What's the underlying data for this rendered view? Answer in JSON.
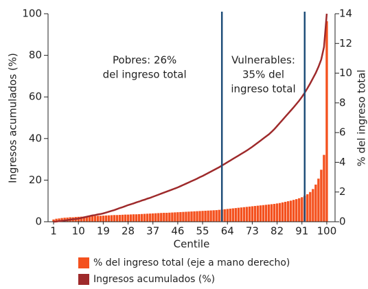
{
  "chart_data": {
    "type": "bar_line",
    "x": [
      1,
      2,
      3,
      4,
      5,
      6,
      7,
      8,
      9,
      10,
      11,
      12,
      13,
      14,
      15,
      16,
      17,
      18,
      19,
      20,
      21,
      22,
      23,
      24,
      25,
      26,
      27,
      28,
      29,
      30,
      31,
      32,
      33,
      34,
      35,
      36,
      37,
      38,
      39,
      40,
      41,
      42,
      43,
      44,
      45,
      46,
      47,
      48,
      49,
      50,
      51,
      52,
      53,
      54,
      55,
      56,
      57,
      58,
      59,
      60,
      61,
      62,
      63,
      64,
      65,
      66,
      67,
      68,
      69,
      70,
      71,
      72,
      73,
      74,
      75,
      76,
      77,
      78,
      79,
      80,
      81,
      82,
      83,
      84,
      85,
      86,
      87,
      88,
      89,
      90,
      91,
      92,
      93,
      94,
      95,
      96,
      97,
      98,
      99,
      100
    ],
    "xlim": [
      -1,
      103
    ],
    "xticks": [
      1,
      10,
      19,
      28,
      37,
      46,
      55,
      64,
      73,
      82,
      91,
      100
    ],
    "xlabel": "Centile",
    "ylabel": "Ingresos acumulados (%)",
    "y2label": "% del ingreso total",
    "ylim": [
      0,
      100
    ],
    "yticks": [
      0,
      20,
      40,
      60,
      80,
      100
    ],
    "y2lim": [
      0,
      14
    ],
    "y2ticks": [
      0,
      2,
      4,
      6,
      8,
      10,
      12,
      14
    ],
    "series": [
      {
        "name": "% del ingreso total (eje a mano derecho)",
        "color": "#f4511e",
        "kind": "bar",
        "axis": "y2",
        "values": [
          0.15,
          0.2,
          0.22,
          0.25,
          0.27,
          0.28,
          0.3,
          0.3,
          0.32,
          0.33,
          0.34,
          0.35,
          0.36,
          0.37,
          0.38,
          0.39,
          0.4,
          0.4,
          0.41,
          0.42,
          0.43,
          0.44,
          0.45,
          0.45,
          0.46,
          0.47,
          0.48,
          0.48,
          0.49,
          0.5,
          0.5,
          0.51,
          0.52,
          0.53,
          0.54,
          0.55,
          0.56,
          0.57,
          0.58,
          0.59,
          0.6,
          0.6,
          0.61,
          0.62,
          0.63,
          0.64,
          0.65,
          0.66,
          0.67,
          0.68,
          0.69,
          0.7,
          0.71,
          0.72,
          0.73,
          0.74,
          0.75,
          0.76,
          0.77,
          0.78,
          0.8,
          0.82,
          0.84,
          0.86,
          0.88,
          0.9,
          0.92,
          0.94,
          0.96,
          0.98,
          1.0,
          1.02,
          1.04,
          1.06,
          1.08,
          1.1,
          1.12,
          1.14,
          1.16,
          1.18,
          1.2,
          1.23,
          1.26,
          1.3,
          1.34,
          1.38,
          1.42,
          1.47,
          1.52,
          1.58,
          1.65,
          1.75,
          1.85,
          2.0,
          2.2,
          2.5,
          2.9,
          3.5,
          4.5,
          13.5
        ]
      },
      {
        "name": "Ingresos acumulados (%)",
        "color": "#9e2a2b",
        "kind": "line",
        "values": [
          0,
          0.1,
          0.3,
          0.4,
          0.6,
          0.8,
          1.0,
          1.2,
          1.3,
          1.5,
          1.8,
          2.1,
          2.4,
          2.7,
          3.0,
          3.2,
          3.5,
          3.7,
          4.0,
          4.4,
          4.8,
          5.2,
          5.6,
          6.1,
          6.6,
          7.0,
          7.5,
          8.0,
          8.4,
          8.8,
          9.3,
          9.7,
          10.2,
          10.6,
          11.1,
          11.5,
          12.0,
          12.5,
          13.0,
          13.5,
          14.0,
          14.5,
          15.0,
          15.5,
          16.0,
          16.5,
          17.1,
          17.7,
          18.3,
          18.9,
          19.5,
          20.1,
          20.7,
          21.4,
          22.0,
          22.7,
          23.4,
          24.1,
          24.8,
          25.5,
          26.2,
          27.0,
          27.8,
          28.6,
          29.4,
          30.2,
          31.0,
          31.8,
          32.6,
          33.4,
          34.2,
          35.1,
          36.0,
          37.0,
          38.0,
          39.0,
          40.0,
          41.0,
          42.0,
          43.2,
          44.5,
          46.0,
          47.5,
          49.0,
          50.5,
          52.0,
          53.5,
          55.0,
          56.6,
          58.2,
          60.0,
          62.0,
          64.2,
          66.5,
          69.0,
          71.5,
          74.5,
          78.0,
          84.0,
          100
        ]
      }
    ],
    "vlines": [
      62,
      92
    ],
    "vline_color": "#1f4e79",
    "annotations": [
      {
        "lines": [
          "Pobres: 26%",
          "del ingreso total"
        ],
        "x": 34
      },
      {
        "lines": [
          "Vulnerables:",
          "35% del",
          "ingreso total"
        ],
        "x": 77
      }
    ]
  }
}
